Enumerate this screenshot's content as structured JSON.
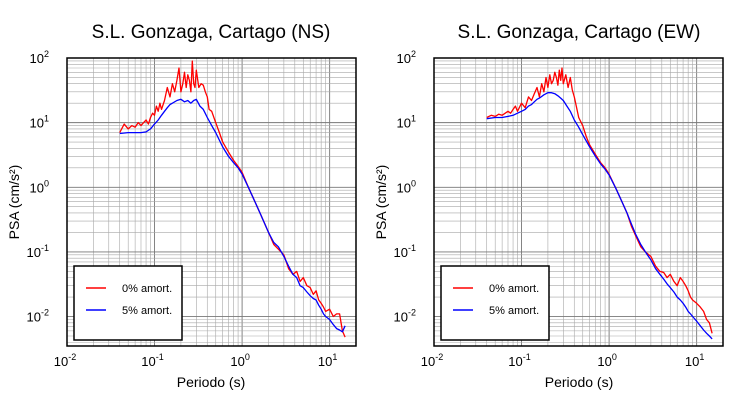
{
  "chart_data": [
    {
      "type": "line",
      "title": "S.L. Gonzaga, Cartago (NS)",
      "xlabel": "Periodo (s)",
      "ylabel": "PSA (cm/s²)",
      "xscale": "log",
      "yscale": "log",
      "xlim": [
        0.01,
        20
      ],
      "ylim": [
        0.0035,
        100
      ],
      "grid": true,
      "legend_position": "bottom-left",
      "x_tick_labels": [
        {
          "base": "10",
          "exp": "-2"
        },
        {
          "base": "10",
          "exp": "-1"
        },
        {
          "base": "10",
          "exp": "0"
        },
        {
          "base": "10",
          "exp": "1"
        }
      ],
      "x_ticks": [
        0.01,
        0.1,
        1,
        10
      ],
      "y_tick_labels": [
        {
          "base": "10",
          "exp": "-2"
        },
        {
          "base": "10",
          "exp": "-1"
        },
        {
          "base": "10",
          "exp": "0"
        },
        {
          "base": "10",
          "exp": "1"
        },
        {
          "base": "10",
          "exp": "2"
        }
      ],
      "y_ticks": [
        0.01,
        0.1,
        1,
        10,
        100
      ],
      "series": [
        {
          "name": "0% amort.",
          "color": "#ff0000",
          "x": [
            0.04,
            0.045,
            0.05,
            0.055,
            0.06,
            0.065,
            0.07,
            0.075,
            0.08,
            0.085,
            0.09,
            0.095,
            0.1,
            0.105,
            0.11,
            0.115,
            0.12,
            0.13,
            0.14,
            0.15,
            0.16,
            0.17,
            0.18,
            0.19,
            0.2,
            0.21,
            0.22,
            0.23,
            0.24,
            0.25,
            0.26,
            0.27,
            0.28,
            0.29,
            0.3,
            0.32,
            0.34,
            0.36,
            0.38,
            0.4,
            0.42,
            0.45,
            0.5,
            0.55,
            0.6,
            0.7,
            0.8,
            0.9,
            1.0,
            1.2,
            1.4,
            1.6,
            1.8,
            2.0,
            2.3,
            2.6,
            3.0,
            3.4,
            3.8,
            4.2,
            4.6,
            5.0,
            5.5,
            6.0,
            6.5,
            7.0,
            7.5,
            8.0,
            8.5,
            9.0,
            10,
            11,
            12,
            13,
            14,
            15
          ],
          "y": [
            7,
            9.5,
            8,
            9,
            8.5,
            10,
            9,
            10,
            11,
            9.5,
            12,
            14,
            13,
            18,
            15,
            20,
            16,
            22,
            35,
            25,
            40,
            30,
            45,
            70,
            30,
            40,
            60,
            35,
            55,
            45,
            30,
            90,
            40,
            35,
            65,
            35,
            40,
            38,
            30,
            25,
            16,
            15,
            10,
            7,
            5,
            3.5,
            2.6,
            2.1,
            1.7,
            0.95,
            0.6,
            0.4,
            0.28,
            0.2,
            0.13,
            0.11,
            0.09,
            0.055,
            0.045,
            0.05,
            0.035,
            0.04,
            0.03,
            0.028,
            0.022,
            0.025,
            0.018,
            0.016,
            0.014,
            0.012,
            0.013,
            0.01,
            0.011,
            0.011,
            0.006,
            0.0048
          ]
        },
        {
          "name": "5% amort.",
          "color": "#0000ff",
          "x": [
            0.04,
            0.05,
            0.06,
            0.07,
            0.08,
            0.09,
            0.1,
            0.11,
            0.12,
            0.13,
            0.14,
            0.15,
            0.16,
            0.18,
            0.2,
            0.22,
            0.24,
            0.26,
            0.28,
            0.3,
            0.33,
            0.36,
            0.4,
            0.45,
            0.5,
            0.6,
            0.7,
            0.8,
            0.9,
            1.0,
            1.2,
            1.4,
            1.6,
            1.8,
            2.0,
            2.3,
            2.6,
            3.0,
            3.4,
            3.8,
            4.2,
            4.6,
            5.0,
            5.5,
            6.0,
            6.5,
            7.0,
            7.5,
            8.0,
            8.5,
            9.0,
            10,
            11,
            12,
            13,
            14,
            15
          ],
          "y": [
            6.8,
            7,
            7,
            7,
            7.2,
            8,
            9.5,
            11,
            13,
            15,
            17,
            19,
            20,
            22,
            23,
            21,
            22,
            20,
            22,
            23,
            18,
            16,
            12,
            9,
            7,
            4.2,
            3,
            2.4,
            2.0,
            1.6,
            0.95,
            0.6,
            0.4,
            0.28,
            0.2,
            0.14,
            0.12,
            0.085,
            0.06,
            0.045,
            0.04,
            0.03,
            0.028,
            0.024,
            0.021,
            0.019,
            0.018,
            0.015,
            0.013,
            0.011,
            0.01,
            0.009,
            0.0075,
            0.0065,
            0.0062,
            0.0058,
            0.0072
          ]
        }
      ]
    },
    {
      "type": "line",
      "title": "S.L. Gonzaga, Cartago (EW)",
      "xlabel": "Periodo (s)",
      "ylabel": "PSA (cm/s²)",
      "xscale": "log",
      "yscale": "log",
      "xlim": [
        0.01,
        20
      ],
      "ylim": [
        0.0035,
        100
      ],
      "grid": true,
      "legend_position": "bottom-left",
      "x_tick_labels": [
        {
          "base": "10",
          "exp": "-2"
        },
        {
          "base": "10",
          "exp": "-1"
        },
        {
          "base": "10",
          "exp": "0"
        },
        {
          "base": "10",
          "exp": "1"
        }
      ],
      "x_ticks": [
        0.01,
        0.1,
        1,
        10
      ],
      "y_tick_labels": [
        {
          "base": "10",
          "exp": "-2"
        },
        {
          "base": "10",
          "exp": "-1"
        },
        {
          "base": "10",
          "exp": "0"
        },
        {
          "base": "10",
          "exp": "1"
        },
        {
          "base": "10",
          "exp": "2"
        }
      ],
      "y_ticks": [
        0.01,
        0.1,
        1,
        10,
        100
      ],
      "series": [
        {
          "name": "0% amort.",
          "color": "#ff0000",
          "x": [
            0.04,
            0.045,
            0.05,
            0.055,
            0.06,
            0.065,
            0.07,
            0.075,
            0.08,
            0.085,
            0.09,
            0.1,
            0.11,
            0.12,
            0.13,
            0.14,
            0.15,
            0.16,
            0.17,
            0.18,
            0.19,
            0.2,
            0.21,
            0.22,
            0.23,
            0.24,
            0.25,
            0.26,
            0.27,
            0.28,
            0.29,
            0.3,
            0.32,
            0.34,
            0.36,
            0.38,
            0.4,
            0.45,
            0.5,
            0.55,
            0.6,
            0.7,
            0.8,
            0.9,
            1.0,
            1.2,
            1.4,
            1.6,
            1.8,
            2.0,
            2.3,
            2.6,
            3.0,
            3.4,
            3.8,
            4.2,
            4.6,
            5.0,
            5.5,
            6.0,
            6.5,
            7.0,
            7.5,
            8.0,
            8.5,
            9.0,
            10,
            11,
            12,
            13,
            14,
            15
          ],
          "y": [
            12,
            13,
            12.5,
            13.5,
            13,
            14,
            15,
            14,
            16,
            18,
            15,
            20,
            17,
            25,
            22,
            28,
            35,
            25,
            40,
            30,
            50,
            35,
            55,
            40,
            45,
            60,
            50,
            38,
            65,
            45,
            70,
            40,
            55,
            35,
            50,
            32,
            25,
            12,
            9,
            6,
            4.5,
            3.2,
            2.4,
            2.0,
            1.6,
            0.95,
            0.6,
            0.4,
            0.25,
            0.18,
            0.12,
            0.1,
            0.085,
            0.06,
            0.05,
            0.048,
            0.04,
            0.045,
            0.035,
            0.03,
            0.04,
            0.035,
            0.03,
            0.025,
            0.02,
            0.018,
            0.016,
            0.014,
            0.012,
            0.009,
            0.008,
            0.0055
          ]
        },
        {
          "name": "5% amort.",
          "color": "#0000ff",
          "x": [
            0.04,
            0.05,
            0.06,
            0.07,
            0.08,
            0.09,
            0.1,
            0.11,
            0.12,
            0.13,
            0.14,
            0.15,
            0.16,
            0.18,
            0.2,
            0.22,
            0.24,
            0.26,
            0.28,
            0.3,
            0.33,
            0.36,
            0.4,
            0.45,
            0.5,
            0.6,
            0.7,
            0.8,
            0.9,
            1.0,
            1.2,
            1.4,
            1.6,
            1.8,
            2.0,
            2.3,
            2.6,
            3.0,
            3.4,
            3.8,
            4.2,
            4.6,
            5.0,
            5.5,
            6.0,
            6.5,
            7.0,
            7.5,
            8.0,
            8.5,
            9.0,
            10,
            11,
            12,
            13,
            14,
            15
          ],
          "y": [
            11.5,
            12,
            12,
            12.5,
            13,
            14,
            15,
            16,
            18,
            19,
            21,
            23,
            24,
            27,
            29,
            29,
            28,
            26,
            24,
            22,
            18,
            15,
            11,
            8.5,
            6.5,
            4.2,
            3,
            2.3,
            1.9,
            1.55,
            0.95,
            0.6,
            0.4,
            0.27,
            0.19,
            0.13,
            0.1,
            0.075,
            0.055,
            0.045,
            0.038,
            0.032,
            0.028,
            0.024,
            0.02,
            0.018,
            0.016,
            0.014,
            0.012,
            0.011,
            0.01,
            0.0085,
            0.0072,
            0.0062,
            0.0055,
            0.005,
            0.0045
          ]
        }
      ]
    }
  ]
}
